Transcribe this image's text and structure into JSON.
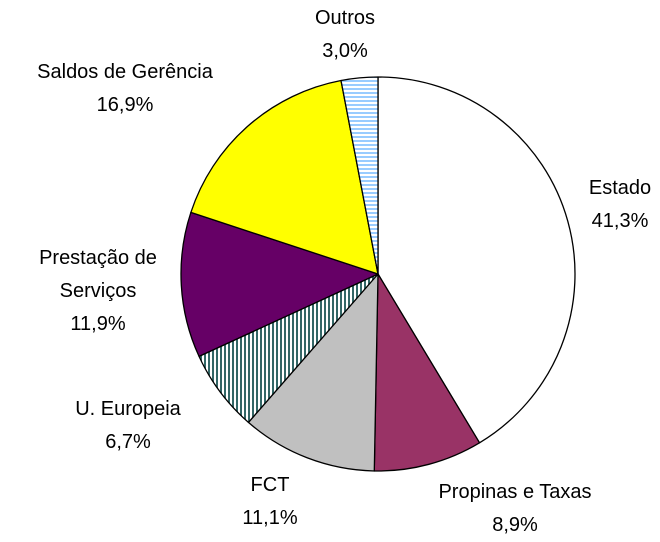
{
  "chart_data": {
    "type": "pie",
    "categories": [
      "Estado",
      "Propinas e Taxas",
      "FCT",
      "U. Europeia",
      "Prestação de Serviços",
      "Saldos de Gerência",
      "Outros"
    ],
    "values": [
      41.3,
      8.9,
      11.1,
      6.7,
      11.9,
      16.9,
      3.0
    ],
    "value_labels": [
      "41,3%",
      "8,9%",
      "11,1%",
      "6,7%",
      "11,9%",
      "16,9%",
      "3,0%"
    ],
    "colors": [
      "#ffffff",
      "#993366",
      "#c0c0c0",
      "#336666",
      "#660066",
      "#ffff00",
      "#99ccff"
    ]
  }
}
